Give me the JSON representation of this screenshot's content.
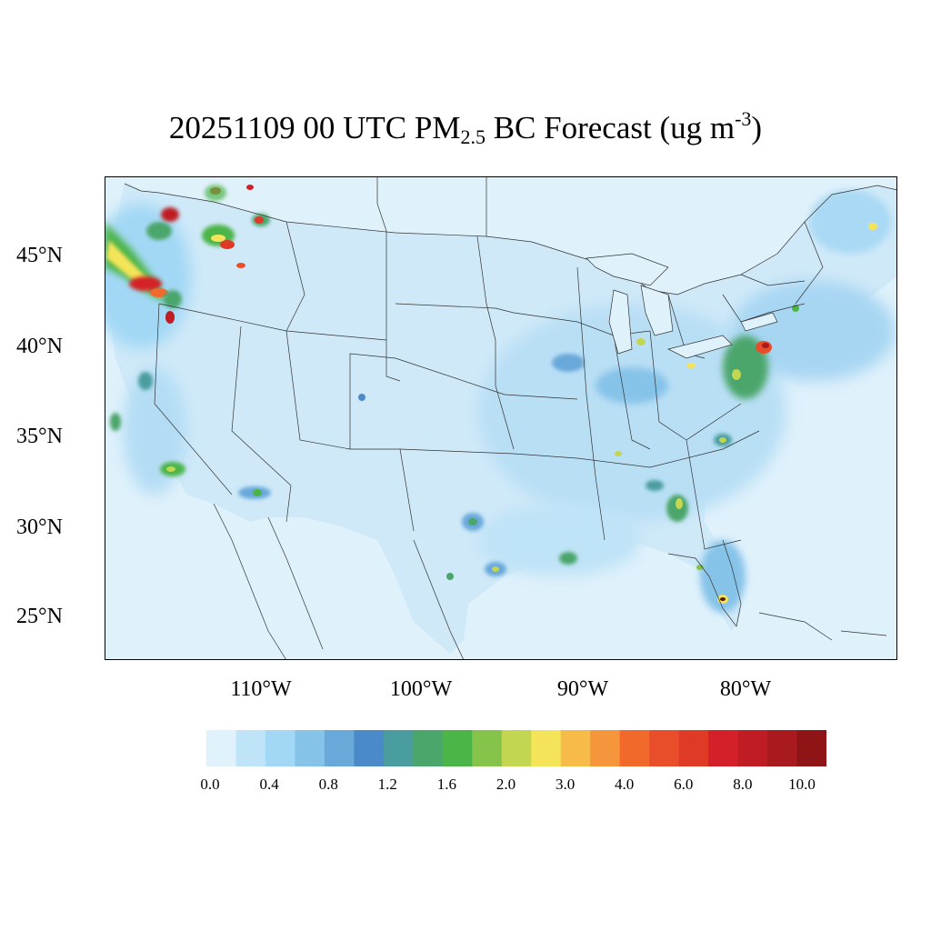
{
  "title": {
    "date": "20251109",
    "hour": "00 UTC",
    "species_main": "PM",
    "species_sub": "2.5",
    "species_rest": "BC Forecast (ug m",
    "unit_sup": "-3",
    "close": ")"
  },
  "map": {
    "projection": "lambert-conformal",
    "region": "Continental United States",
    "lat_labels": [
      "45°N",
      "40°N",
      "35°N",
      "30°N",
      "25°N"
    ],
    "lon_labels": [
      "110°W",
      "100°W",
      "90°W",
      "80°W"
    ],
    "ocean_color": "#dff1fb",
    "land_base_color": "#c9e6f7",
    "hotspots": [
      {
        "region": "western Washington / Oregon coast",
        "level": 10.0
      },
      {
        "region": "northern Idaho / western Montana",
        "level": 6.0
      },
      {
        "region": "Seattle area",
        "level": 8.0
      },
      {
        "region": "Los Angeles basin",
        "level": 2.0
      },
      {
        "region": "Phoenix",
        "level": 1.6
      },
      {
        "region": "Houston",
        "level": 1.6
      },
      {
        "region": "New Orleans",
        "level": 1.6
      },
      {
        "region": "Atlanta",
        "level": 2.0
      },
      {
        "region": "Charlotte",
        "level": 2.0
      },
      {
        "region": "Detroit",
        "level": 2.0
      },
      {
        "region": "Chicago",
        "level": 1.6
      },
      {
        "region": "Philadelphia / New York corridor",
        "level": 10.0
      },
      {
        "region": "Miami",
        "level": 3.0
      },
      {
        "region": "Tampa",
        "level": 2.0
      }
    ]
  },
  "colorbar": {
    "colors": [
      "#e0f2fb",
      "#bfe3f7",
      "#a2d8f5",
      "#86c3e9",
      "#69a9da",
      "#4b8ac9",
      "#4a9d9f",
      "#4ba66c",
      "#4bb548",
      "#86c34b",
      "#c2d651",
      "#f4e459",
      "#f7bb4a",
      "#f5953c",
      "#f2692c",
      "#e84e29",
      "#df3a25",
      "#d42028",
      "#bf1c23",
      "#a81a1d",
      "#8e1416"
    ],
    "labels": [
      "0.0",
      "0.4",
      "0.8",
      "1.2",
      "1.6",
      "2.0",
      "3.0",
      "4.0",
      "6.0",
      "8.0",
      "10.0"
    ]
  }
}
